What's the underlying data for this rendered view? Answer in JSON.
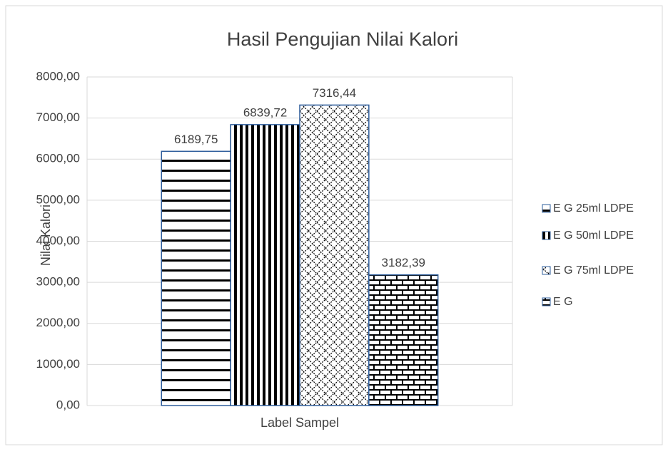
{
  "chart_data": {
    "type": "bar",
    "title": "Hasil Pengujian Nilai Kalori",
    "ylabel": "Nilai Kalori",
    "xlabel": "Label Sampel",
    "categories": [
      "Label Sampel"
    ],
    "series": [
      {
        "name": "E G 25ml LDPE",
        "color": "#000000",
        "pattern": "horizontal",
        "values": [
          6189.75
        ],
        "value_labels": [
          "6189,75"
        ]
      },
      {
        "name": "E G 50ml LDPE",
        "color": "#000000",
        "pattern": "vertical",
        "values": [
          6839.72
        ],
        "value_labels": [
          "6839,72"
        ]
      },
      {
        "name": "E G 75ml LDPE",
        "color": "#000000",
        "pattern": "diagonal",
        "values": [
          7316.44
        ],
        "value_labels": [
          "7316,44"
        ]
      },
      {
        "name": "E G",
        "color": "#000000",
        "pattern": "brick",
        "values": [
          3182.39
        ],
        "value_labels": [
          "3182,39"
        ]
      }
    ],
    "ylim": [
      0,
      8000
    ],
    "yticks": [
      {
        "value": 0,
        "label": "0,00"
      },
      {
        "value": 1000,
        "label": "1000,00"
      },
      {
        "value": 2000,
        "label": "2000,00"
      },
      {
        "value": 3000,
        "label": "3000,00"
      },
      {
        "value": 4000,
        "label": "4000,00"
      },
      {
        "value": 5000,
        "label": "5000,00"
      },
      {
        "value": 6000,
        "label": "6000,00"
      },
      {
        "value": 7000,
        "label": "7000,00"
      },
      {
        "value": 8000,
        "label": "8000,00"
      }
    ],
    "grid": true,
    "legend": "right"
  }
}
